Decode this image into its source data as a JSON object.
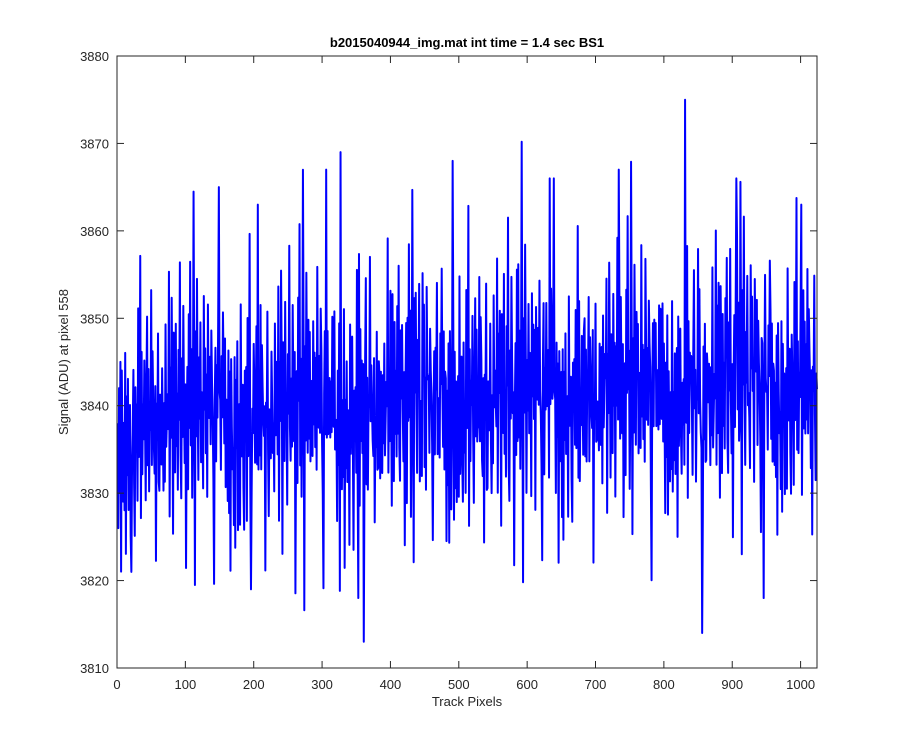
{
  "chart_data": {
    "type": "line",
    "title": "b2015040944_img.mat int time = 1.4 sec   BS1",
    "xlabel": "Track Pixels",
    "ylabel": "Signal (ADU) at pixel 558",
    "xlim": [
      0,
      1024
    ],
    "ylim": [
      3810,
      3880
    ],
    "xticks": [
      0,
      100,
      200,
      300,
      400,
      500,
      600,
      700,
      800,
      900,
      1000
    ],
    "yticks": [
      3810,
      3820,
      3830,
      3840,
      3850,
      3860,
      3870,
      3880
    ],
    "grid": false,
    "line_color": "#0000ff",
    "axes_color": "#262626",
    "series": [
      {
        "x_start": 1,
        "x_step": 1,
        "values": [
          3838,
          3826,
          3842,
          3830,
          3845,
          3821,
          3844,
          3835,
          3829,
          3838,
          3828,
          3846,
          3823,
          3841,
          3832,
          3843,
          3828,
          3835,
          3840,
          3825,
          3849,
          3833,
          3837,
          3844,
          3831,
          3825,
          3842,
          3836,
          3840,
          3829,
          3851,
          3834,
          3838,
          3857,
          3827,
          3846,
          3832,
          3840,
          3836,
          3845,
          3838,
          3829,
          3842,
          3850,
          3833,
          3844,
          3830,
          3839,
          3837,
          3853,
          3833,
          3846,
          3840,
          3835,
          3832,
          3842,
          3822,
          3840,
          3836,
          3848,
          3831,
          3830,
          3841,
          3838,
          3833,
          3844,
          3837,
          3830,
          3840,
          3831,
          3849,
          3835,
          3838,
          3841,
          3837,
          3855,
          3827,
          3844,
          3836,
          3852,
          3840,
          3825,
          3848,
          3838,
          3832,
          3849,
          3835,
          3841,
          3830,
          3846,
          3838,
          3856,
          3834,
          3829,
          3845,
          3836,
          3851,
          3840,
          3833,
          3842,
          3821,
          3838,
          3844,
          3830,
          3850,
          3837,
          3856,
          3835,
          3846,
          3829,
          3838,
          3864,
          3843,
          3819,
          3848,
          3836,
          3854,
          3840,
          3831,
          3845,
          3838,
          3849,
          3833,
          3841,
          3837,
          3830,
          3852,
          3839,
          3846,
          3834,
          3843,
          3829,
          3851,
          3840,
          3838,
          3845,
          3835,
          3848,
          3842,
          3838,
          3831,
          3819,
          3840,
          3846,
          3833,
          3844,
          3838,
          3849,
          3836,
          3841,
          3840,
          3832,
          3845,
          3838,
          3850,
          3843,
          3835,
          3847,
          3830,
          3840
        ],
        "values_cont": []
      }
    ]
  }
}
